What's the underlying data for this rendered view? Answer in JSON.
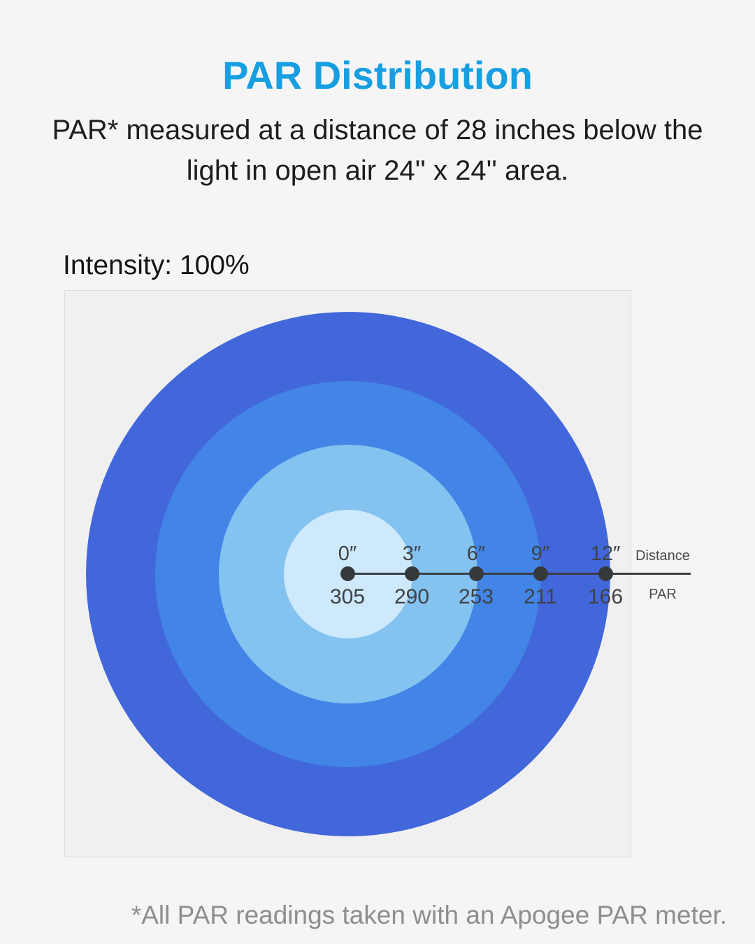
{
  "page": {
    "title": "PAR Distribution",
    "subtitle_line1": "PAR* measured at a distance of 28 inches below the",
    "subtitle_line2": "light in open air 24'' x 24'' area.",
    "footnote": "*All PAR readings taken with an Apogee PAR meter."
  },
  "chart_data": {
    "type": "heatmap",
    "subtype": "concentric-par-distribution",
    "title": "PAR Distribution",
    "intensity_label": "Intensity: 100%",
    "intensity_percent": 100,
    "measurement_note": "PAR* measured at a distance of 28 inches below the light in open air 24'' x 24'' area.",
    "x_label": "Distance",
    "y_label": "PAR",
    "x": [
      "0″",
      "3″",
      "6″",
      "9″",
      "12″"
    ],
    "values": [
      305,
      290,
      253,
      211,
      166
    ],
    "footnote": "*All PAR readings taken with an Apogee PAR meter.",
    "rings": [
      {
        "zone": "12″",
        "par": 166,
        "radius_px": 375,
        "color": "#4267db"
      },
      {
        "zone": "9″",
        "par": 211,
        "radius_px": 276,
        "color": "#4285e6"
      },
      {
        "zone": "6″",
        "par": 253,
        "radius_px": 185,
        "color": "#84c2f0"
      },
      {
        "zone": "3″",
        "par": 290,
        "radius_px": 92,
        "color": "#cde9fb"
      }
    ],
    "colors": {
      "title": "#189fe1",
      "axis_line": "#3a3d40",
      "dot": "#36393c",
      "tick_text": "#3f4245",
      "footnote_text": "#8e8e8e",
      "page_bg": "#f5f5f6",
      "panel_bg": "#f0f0f0",
      "panel_border": "#dcdcdc"
    },
    "layout": {
      "legend": "none",
      "grid": false,
      "axis_direction": "radial-right"
    }
  }
}
